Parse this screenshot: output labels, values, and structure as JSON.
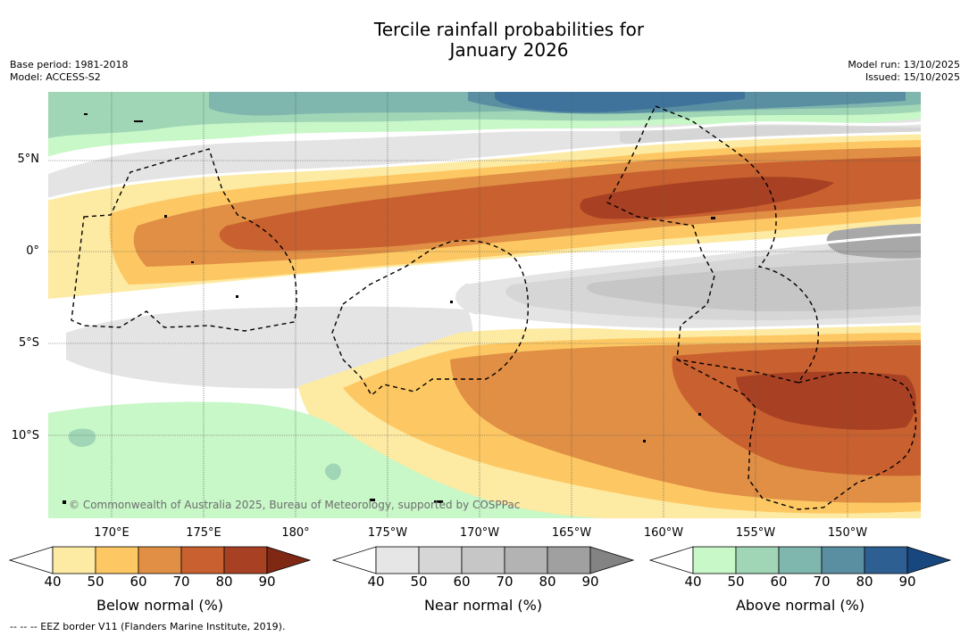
{
  "title_line1": "Tercile rainfall probabilities for",
  "title_line2": "January 2026",
  "meta_left": {
    "base_period": "Base period: 1981-2018",
    "model": "Model: ACCESS-S2"
  },
  "meta_right": {
    "model_run": "Model run: 13/10/2025",
    "issued": "Issued: 15/10/2025"
  },
  "lat_labels": [
    "5°N",
    "0°",
    "5°S",
    "10°S"
  ],
  "lon_labels": [
    "170°E",
    "175°E",
    "180°",
    "175°W",
    "170°W",
    "165°W",
    "160°W",
    "155°W",
    "150°W"
  ],
  "copyright": "© Commonwealth of Australia 2025, Bureau of Meteorology, supported by COSPPac",
  "footnote": "--  --  -- EEZ border V11 (Flanders Marine Institute, 2019).",
  "colorbars": [
    {
      "label": "Below normal (%)",
      "ticks": [
        "40",
        "50",
        "60",
        "70",
        "80",
        "90"
      ],
      "colors": [
        "#ffffff",
        "#fdeaa3",
        "#fdc863",
        "#e08f45",
        "#c8602f",
        "#a84124",
        "#7f2814"
      ]
    },
    {
      "label": "Near normal (%)",
      "ticks": [
        "40",
        "50",
        "60",
        "70",
        "80",
        "90"
      ],
      "colors": [
        "#ffffff",
        "#e6e6e6",
        "#d6d6d6",
        "#c6c6c6",
        "#b3b3b3",
        "#a0a0a0",
        "#838383"
      ]
    },
    {
      "label": "Above normal (%)",
      "ticks": [
        "40",
        "50",
        "60",
        "70",
        "80",
        "90"
      ],
      "colors": [
        "#ffffff",
        "#c8f7c8",
        "#a0d6b6",
        "#7fb6ad",
        "#5a8fa2",
        "#2e5f92",
        "#17477e"
      ]
    }
  ]
}
